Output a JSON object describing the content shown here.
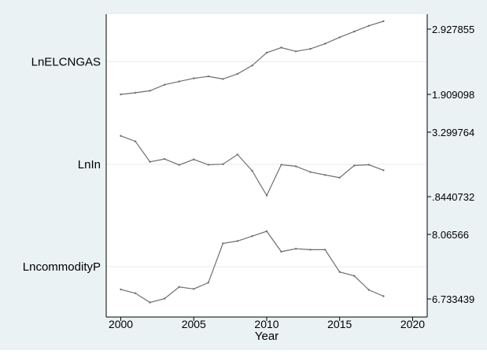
{
  "chart_data": {
    "type": "line",
    "layout": "stacked-panels",
    "xlabel": "Year",
    "xlim": [
      1999,
      2021
    ],
    "xticks": [
      2000,
      2005,
      2010,
      2015,
      2020
    ],
    "x": [
      2000,
      2001,
      2002,
      2003,
      2004,
      2005,
      2006,
      2007,
      2008,
      2009,
      2010,
      2011,
      2012,
      2013,
      2014,
      2015,
      2016,
      2017,
      2018
    ],
    "grid": true,
    "panels": [
      {
        "label": "LnELCNGAS",
        "max_label": "2.927855",
        "min_label": "1.909098",
        "min": 1.909098,
        "max": 2.927855,
        "values": [
          1.909,
          1.935,
          1.965,
          2.06,
          2.11,
          2.16,
          2.19,
          2.15,
          2.23,
          2.36,
          2.56,
          2.64,
          2.58,
          2.62,
          2.7,
          2.8,
          2.89,
          2.98,
          3.05
        ]
      },
      {
        "label": "LnIn",
        "max_label": "3.299764",
        "min_label": ".8440732",
        "min": 0.8440732,
        "max": 3.299764,
        "values": [
          3.16,
          2.95,
          2.17,
          2.28,
          2.05,
          2.26,
          2.06,
          2.08,
          2.45,
          1.83,
          0.89,
          2.06,
          2.0,
          1.78,
          1.67,
          1.57,
          2.03,
          2.06,
          1.85
        ]
      },
      {
        "label": "LncommodityP",
        "max_label": "8.06566",
        "min_label": "6.733439",
        "min": 6.733439,
        "max": 8.06566,
        "values": [
          6.93,
          6.85,
          6.66,
          6.74,
          6.98,
          6.94,
          7.07,
          7.88,
          7.93,
          8.03,
          8.13,
          7.71,
          7.77,
          7.75,
          7.75,
          7.29,
          7.21,
          6.92,
          6.79
        ]
      }
    ]
  }
}
